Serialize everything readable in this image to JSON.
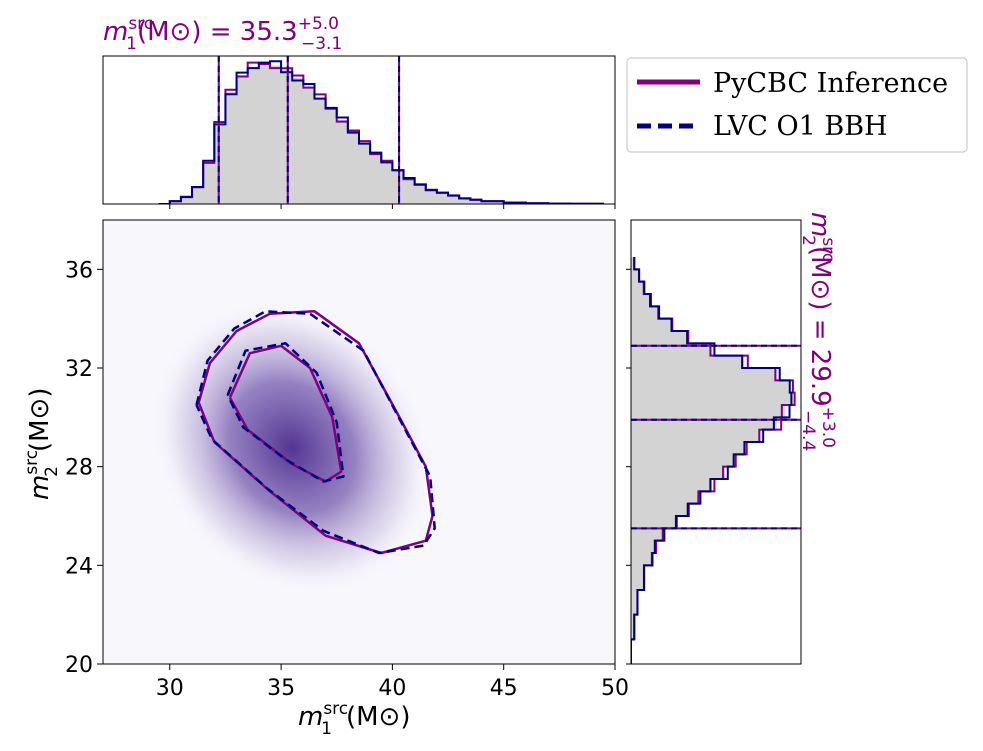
{
  "chart_data": {
    "type": "corner",
    "legend": [
      {
        "label": "PyCBC Inference",
        "color": "#800080",
        "style": "solid"
      },
      {
        "label": "LVC O1 BBH",
        "color": "#000080",
        "style": "dashed"
      }
    ],
    "top_panel": {
      "title": {
        "main": "m",
        "sup": "src",
        "sub": "1",
        "unit": "(M⊙) = 35.3",
        "plus": "+5.0",
        "minus": "−3.1"
      },
      "median": 35.3,
      "lower": 32.2,
      "upper": 40.3,
      "xlim": [
        27,
        50
      ],
      "hist_color": "#d3d3d3",
      "x": [
        29.5,
        30.0,
        30.5,
        31.0,
        31.5,
        32.0,
        32.5,
        33.0,
        33.5,
        34.0,
        34.5,
        35.0,
        35.5,
        36.0,
        36.5,
        37.0,
        37.5,
        38.0,
        38.5,
        39.0,
        39.5,
        40.0,
        40.5,
        41.0,
        41.5,
        42.0,
        42.5,
        43.0,
        43.5,
        44.0,
        45.0,
        46.0,
        47.0,
        48.0,
        49.5
      ],
      "density": [
        0.0,
        0.02,
        0.05,
        0.12,
        0.3,
        0.58,
        0.8,
        0.92,
        0.98,
        1.0,
        0.99,
        0.96,
        0.9,
        0.84,
        0.76,
        0.68,
        0.6,
        0.52,
        0.44,
        0.36,
        0.3,
        0.24,
        0.18,
        0.14,
        0.1,
        0.08,
        0.06,
        0.04,
        0.03,
        0.02,
        0.01,
        0.005,
        0.003,
        0.002,
        0.0
      ]
    },
    "main_panel": {
      "xlabel": {
        "main": "m",
        "sup": "src",
        "sub": "1",
        "unit": "(M⊙)"
      },
      "ylabel": {
        "main": "m",
        "sup": "src",
        "sub": "2",
        "unit": "(M⊙)"
      },
      "xlim": [
        27,
        50
      ],
      "ylim": [
        20,
        38
      ],
      "xticks": [
        30,
        35,
        40,
        45,
        50
      ],
      "yticks": [
        20,
        24,
        28,
        32,
        36
      ],
      "density_color": "#4b2a8c",
      "density_peak": [
        33.7,
        31.0
      ],
      "contours": [
        {
          "series": "PyCBC Inference",
          "level": "90%",
          "points": [
            [
              31.3,
              30.6
            ],
            [
              31.8,
              32.2
            ],
            [
              33.0,
              33.5
            ],
            [
              34.5,
              34.2
            ],
            [
              36.5,
              34.3
            ],
            [
              38.5,
              33.0
            ],
            [
              40.2,
              30.2
            ],
            [
              41.5,
              28.0
            ],
            [
              41.8,
              26.0
            ],
            [
              41.5,
              25.0
            ],
            [
              39.5,
              24.5
            ],
            [
              37.0,
              25.2
            ],
            [
              34.5,
              27.0
            ],
            [
              32.0,
              29.0
            ],
            [
              31.3,
              30.6
            ]
          ]
        },
        {
          "series": "LVC O1 BBH",
          "level": "90%",
          "points": [
            [
              31.2,
              30.5
            ],
            [
              31.7,
              32.3
            ],
            [
              32.9,
              33.6
            ],
            [
              34.3,
              34.3
            ],
            [
              36.3,
              34.2
            ],
            [
              38.7,
              32.7
            ],
            [
              40.4,
              29.8
            ],
            [
              41.7,
              27.6
            ],
            [
              41.9,
              25.5
            ],
            [
              41.4,
              24.8
            ],
            [
              39.4,
              24.5
            ],
            [
              36.9,
              25.4
            ],
            [
              34.4,
              27.1
            ],
            [
              31.9,
              29.1
            ],
            [
              31.2,
              30.5
            ]
          ]
        },
        {
          "series": "PyCBC Inference",
          "level": "50%",
          "points": [
            [
              32.7,
              30.8
            ],
            [
              33.6,
              32.6
            ],
            [
              35.0,
              32.9
            ],
            [
              36.3,
              32.0
            ],
            [
              37.3,
              30.0
            ],
            [
              37.7,
              27.8
            ],
            [
              37.0,
              27.4
            ],
            [
              35.5,
              28.1
            ],
            [
              33.5,
              29.5
            ],
            [
              32.7,
              30.8
            ]
          ]
        },
        {
          "series": "LVC O1 BBH",
          "level": "50%",
          "points": [
            [
              32.6,
              30.9
            ],
            [
              33.4,
              32.7
            ],
            [
              35.2,
              33.0
            ],
            [
              36.6,
              31.8
            ],
            [
              37.5,
              29.8
            ],
            [
              37.8,
              27.6
            ],
            [
              36.9,
              27.4
            ],
            [
              35.2,
              28.3
            ],
            [
              33.3,
              29.6
            ],
            [
              32.6,
              30.9
            ]
          ]
        }
      ]
    },
    "right_panel": {
      "title": {
        "main": "m",
        "sup": "src",
        "sub": "2",
        "unit": "(M⊙) = 29.9",
        "plus": "+3.0",
        "minus": "−4.4"
      },
      "median": 29.9,
      "lower": 25.5,
      "upper": 32.9,
      "ylim": [
        20,
        38
      ],
      "hist_color": "#d3d3d3",
      "y": [
        20.0,
        21.0,
        22.0,
        23.0,
        24.0,
        24.5,
        25.0,
        25.5,
        26.0,
        26.5,
        27.0,
        27.5,
        28.0,
        28.5,
        29.0,
        29.5,
        30.0,
        30.5,
        31.0,
        31.5,
        32.0,
        32.5,
        33.0,
        33.5,
        34.0,
        34.5,
        35.0,
        35.5,
        36.0,
        36.5
      ],
      "density": [
        0.0,
        0.02,
        0.04,
        0.08,
        0.13,
        0.15,
        0.2,
        0.28,
        0.35,
        0.42,
        0.5,
        0.58,
        0.64,
        0.7,
        0.8,
        0.9,
        0.95,
        1.0,
        0.98,
        0.9,
        0.7,
        0.5,
        0.35,
        0.25,
        0.17,
        0.12,
        0.08,
        0.05,
        0.02,
        0.0
      ]
    }
  }
}
